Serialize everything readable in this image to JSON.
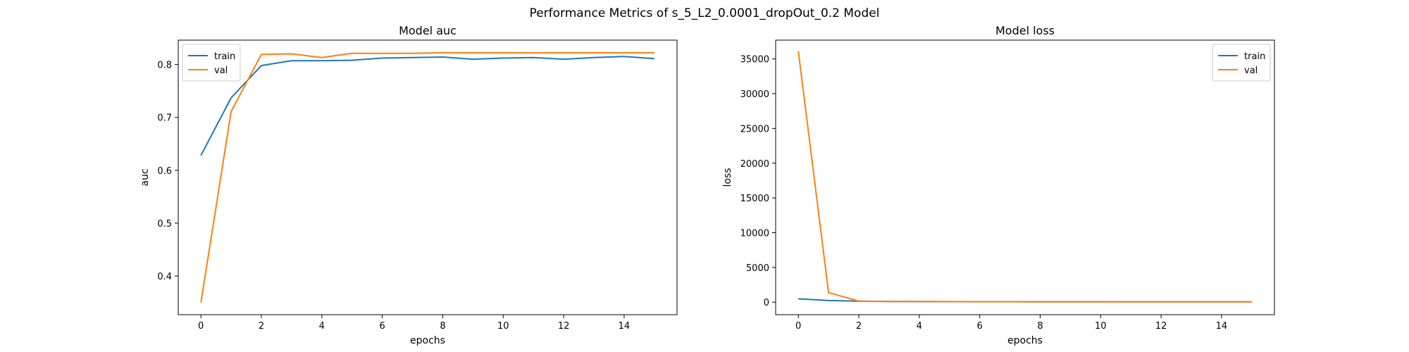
{
  "figure": {
    "suptitle": "Performance Metrics of s_5_L2_0.0001_dropOut_0.2 Model"
  },
  "chart_data": [
    {
      "type": "line",
      "title": "Model auc",
      "xlabel": "epochs",
      "ylabel": "auc",
      "xlim": [
        -0.75,
        15.75
      ],
      "ylim": [
        0.327,
        0.846
      ],
      "xticks": [
        0,
        2,
        4,
        6,
        8,
        10,
        12,
        14
      ],
      "yticks": [
        0.4,
        0.5,
        0.6,
        0.7,
        0.8
      ],
      "ytick_labels": [
        "0.4",
        "0.5",
        "0.6",
        "0.7",
        "0.8"
      ],
      "grid": false,
      "legend_position": "upper-left",
      "x": [
        0,
        1,
        2,
        3,
        4,
        5,
        6,
        7,
        8,
        9,
        10,
        11,
        12,
        13,
        14,
        15
      ],
      "series": [
        {
          "name": "train",
          "color": "#1f77b4",
          "values": [
            0.628,
            0.737,
            0.798,
            0.807,
            0.807,
            0.808,
            0.812,
            0.813,
            0.814,
            0.81,
            0.812,
            0.813,
            0.81,
            0.813,
            0.815,
            0.811
          ]
        },
        {
          "name": "val",
          "color": "#ff7f0e",
          "values": [
            0.35,
            0.711,
            0.819,
            0.82,
            0.813,
            0.821,
            0.821,
            0.821,
            0.822,
            0.822,
            0.822,
            0.822,
            0.822,
            0.822,
            0.822,
            0.822
          ]
        }
      ]
    },
    {
      "type": "line",
      "title": "Model loss",
      "xlabel": "epochs",
      "ylabel": "loss",
      "xlim": [
        -0.75,
        15.75
      ],
      "ylim": [
        -1800,
        37700
      ],
      "xticks": [
        0,
        2,
        4,
        6,
        8,
        10,
        12,
        14
      ],
      "yticks": [
        0,
        5000,
        10000,
        15000,
        20000,
        25000,
        30000,
        35000
      ],
      "ytick_labels": [
        "0",
        "5000",
        "10000",
        "15000",
        "20000",
        "25000",
        "30000",
        "35000"
      ],
      "grid": false,
      "legend_position": "upper-right",
      "x": [
        0,
        1,
        2,
        3,
        4,
        5,
        6,
        7,
        8,
        9,
        10,
        11,
        12,
        13,
        14,
        15
      ],
      "series": [
        {
          "name": "train",
          "color": "#1f77b4",
          "values": [
            480,
            240,
            140,
            100,
            80,
            70,
            65,
            60,
            55,
            50,
            48,
            46,
            44,
            42,
            40,
            40
          ]
        },
        {
          "name": "val",
          "color": "#ff7f0e",
          "values": [
            36100,
            1380,
            150,
            100,
            90,
            80,
            75,
            70,
            65,
            60,
            60,
            55,
            55,
            50,
            50,
            50
          ]
        }
      ]
    }
  ]
}
